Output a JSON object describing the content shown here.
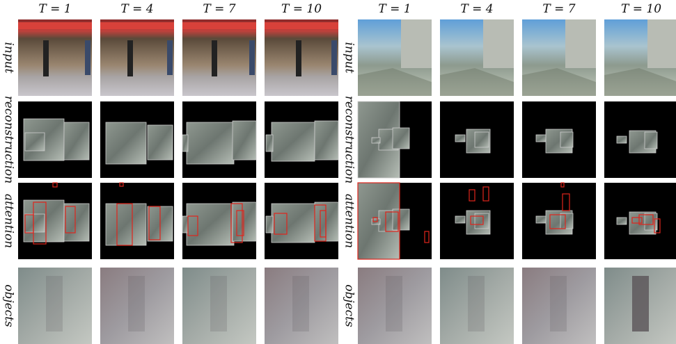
{
  "panels": [
    {
      "headers": [
        "T = 1",
        "T = 4",
        "T = 7",
        "T = 10"
      ],
      "row_labels": [
        "input",
        "reconstruction",
        "attention",
        "objects"
      ]
    },
    {
      "headers": [
        "T = 1",
        "T = 4",
        "T = 7",
        "T = 10"
      ],
      "row_labels": [
        "input",
        "reconstruction",
        "attention",
        "objects"
      ]
    }
  ]
}
